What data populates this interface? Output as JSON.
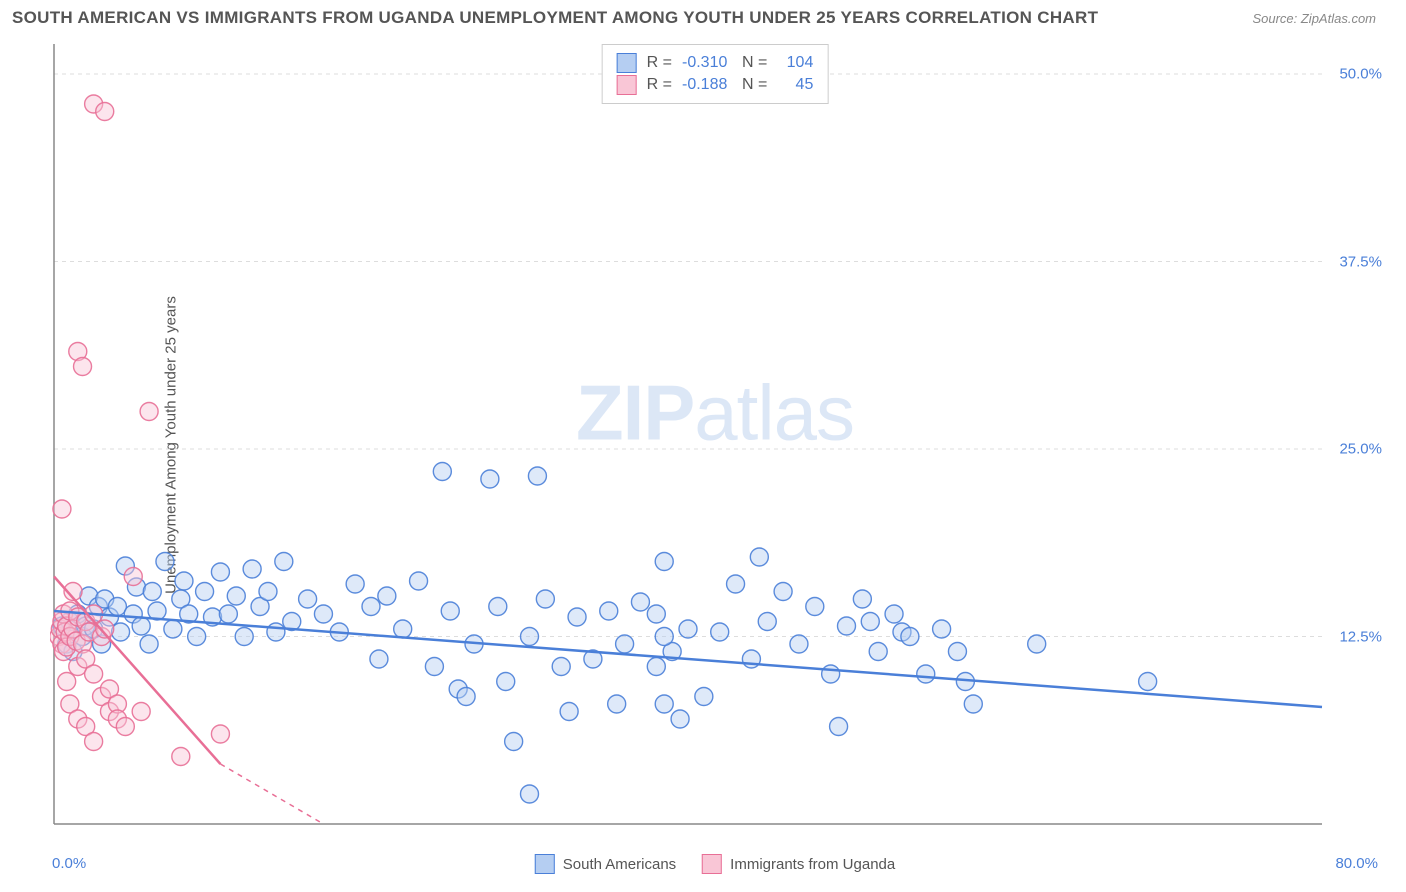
{
  "header": {
    "title": "SOUTH AMERICAN VS IMMIGRANTS FROM UGANDA UNEMPLOYMENT AMONG YOUTH UNDER 25 YEARS CORRELATION CHART",
    "source": "Source: ZipAtlas.com"
  },
  "watermark": {
    "part1": "ZIP",
    "part2": "atlas"
  },
  "chart": {
    "type": "scatter",
    "ylabel": "Unemployment Among Youth under 25 years",
    "xlim": [
      0,
      80
    ],
    "ylim": [
      0,
      52
    ],
    "xticks": [
      {
        "v": 0,
        "label": "0.0%"
      },
      {
        "v": 80,
        "label": "80.0%"
      }
    ],
    "yticks": [
      {
        "v": 12.5,
        "label": "12.5%"
      },
      {
        "v": 25.0,
        "label": "25.0%"
      },
      {
        "v": 37.5,
        "label": "37.5%"
      },
      {
        "v": 50.0,
        "label": "50.0%"
      }
    ],
    "grid_color": "#dddddd",
    "axis_color": "#888888",
    "background_color": "#ffffff",
    "marker_radius": 9,
    "marker_opacity": 0.45,
    "marker_stroke_opacity": 0.9,
    "line_width": 2.5,
    "series": [
      {
        "name": "South Americans",
        "color": "#6fa3e8",
        "stroke": "#4a7fd8",
        "fill": "#b5cef2",
        "R": "-0.310",
        "N": "104",
        "trend": {
          "x1": 0,
          "y1": 14.2,
          "x2": 80,
          "y2": 7.8
        },
        "points": [
          [
            0.5,
            13.2
          ],
          [
            0.8,
            12.0
          ],
          [
            1.0,
            13.5
          ],
          [
            1.2,
            11.5
          ],
          [
            1.5,
            14.0
          ],
          [
            1.8,
            12.5
          ],
          [
            2.0,
            13.2
          ],
          [
            2.2,
            15.2
          ],
          [
            2.5,
            13.0
          ],
          [
            2.8,
            14.5
          ],
          [
            3.0,
            12.0
          ],
          [
            3.2,
            15.0
          ],
          [
            3.5,
            13.8
          ],
          [
            4.0,
            14.5
          ],
          [
            4.2,
            12.8
          ],
          [
            4.5,
            17.2
          ],
          [
            5.0,
            14.0
          ],
          [
            5.2,
            15.8
          ],
          [
            5.5,
            13.2
          ],
          [
            6.0,
            12.0
          ],
          [
            6.2,
            15.5
          ],
          [
            6.5,
            14.2
          ],
          [
            7.0,
            17.5
          ],
          [
            7.5,
            13.0
          ],
          [
            8.0,
            15.0
          ],
          [
            8.2,
            16.2
          ],
          [
            8.5,
            14.0
          ],
          [
            9.0,
            12.5
          ],
          [
            9.5,
            15.5
          ],
          [
            10.0,
            13.8
          ],
          [
            10.5,
            16.8
          ],
          [
            11.0,
            14.0
          ],
          [
            11.5,
            15.2
          ],
          [
            12.0,
            12.5
          ],
          [
            12.5,
            17.0
          ],
          [
            13.0,
            14.5
          ],
          [
            13.5,
            15.5
          ],
          [
            14.0,
            12.8
          ],
          [
            14.5,
            17.5
          ],
          [
            15.0,
            13.5
          ],
          [
            16.0,
            15.0
          ],
          [
            17.0,
            14.0
          ],
          [
            18.0,
            12.8
          ],
          [
            19.0,
            16.0
          ],
          [
            20.0,
            14.5
          ],
          [
            20.5,
            11.0
          ],
          [
            21.0,
            15.2
          ],
          [
            22.0,
            13.0
          ],
          [
            23.0,
            16.2
          ],
          [
            24.0,
            10.5
          ],
          [
            24.5,
            23.5
          ],
          [
            25.0,
            14.2
          ],
          [
            25.5,
            9.0
          ],
          [
            26.0,
            8.5
          ],
          [
            26.5,
            12.0
          ],
          [
            27.5,
            23.0
          ],
          [
            28.0,
            14.5
          ],
          [
            28.5,
            9.5
          ],
          [
            29.0,
            5.5
          ],
          [
            30.0,
            12.5
          ],
          [
            30.5,
            23.2
          ],
          [
            31.0,
            15.0
          ],
          [
            32.0,
            10.5
          ],
          [
            32.5,
            7.5
          ],
          [
            33.0,
            13.8
          ],
          [
            34.0,
            11.0
          ],
          [
            35.0,
            14.2
          ],
          [
            35.5,
            8.0
          ],
          [
            36.0,
            12.0
          ],
          [
            37.0,
            14.8
          ],
          [
            38.0,
            10.5
          ],
          [
            38.5,
            17.5
          ],
          [
            39.0,
            11.5
          ],
          [
            40.0,
            13.0
          ],
          [
            41.0,
            8.5
          ],
          [
            42.0,
            12.8
          ],
          [
            43.0,
            16.0
          ],
          [
            44.0,
            11.0
          ],
          [
            44.5,
            17.8
          ],
          [
            45.0,
            13.5
          ],
          [
            46.0,
            15.5
          ],
          [
            47.0,
            12.0
          ],
          [
            48.0,
            14.5
          ],
          [
            49.0,
            10.0
          ],
          [
            49.5,
            6.5
          ],
          [
            50.0,
            13.2
          ],
          [
            51.0,
            15.0
          ],
          [
            51.5,
            13.5
          ],
          [
            52.0,
            11.5
          ],
          [
            53.0,
            14.0
          ],
          [
            53.5,
            12.8
          ],
          [
            54.0,
            12.5
          ],
          [
            55.0,
            10.0
          ],
          [
            56.0,
            13.0
          ],
          [
            57.0,
            11.5
          ],
          [
            57.5,
            9.5
          ],
          [
            58.0,
            8.0
          ],
          [
            62.0,
            12.0
          ],
          [
            69.0,
            9.5
          ],
          [
            30.0,
            2.0
          ],
          [
            38.5,
            8.0
          ],
          [
            39.5,
            7.0
          ],
          [
            38.0,
            14.0
          ],
          [
            38.5,
            12.5
          ]
        ]
      },
      {
        "name": "Immigrants from Uganda",
        "color": "#f29bb7",
        "stroke": "#e86f96",
        "fill": "#f9c6d6",
        "R": "-0.188",
        "N": "45",
        "trend": {
          "x1": 0,
          "y1": 16.5,
          "x2": 10.5,
          "y2": 4.0
        },
        "trend_dash": {
          "x1": 10.5,
          "y1": 4.0,
          "x2": 17,
          "y2": 0
        },
        "points": [
          [
            0.3,
            12.5
          ],
          [
            0.4,
            13.0
          ],
          [
            0.5,
            12.0
          ],
          [
            0.5,
            13.5
          ],
          [
            0.6,
            11.5
          ],
          [
            0.6,
            14.0
          ],
          [
            0.7,
            12.8
          ],
          [
            0.8,
            13.2
          ],
          [
            0.8,
            11.8
          ],
          [
            1.0,
            12.5
          ],
          [
            1.0,
            14.2
          ],
          [
            1.2,
            13.0
          ],
          [
            1.2,
            15.5
          ],
          [
            1.4,
            12.2
          ],
          [
            1.5,
            13.8
          ],
          [
            1.5,
            10.5
          ],
          [
            1.8,
            12.0
          ],
          [
            2.0,
            13.5
          ],
          [
            2.0,
            11.0
          ],
          [
            2.2,
            12.8
          ],
          [
            2.5,
            14.0
          ],
          [
            2.5,
            10.0
          ],
          [
            3.0,
            12.5
          ],
          [
            3.0,
            8.5
          ],
          [
            3.2,
            13.0
          ],
          [
            3.5,
            9.0
          ],
          [
            3.5,
            7.5
          ],
          [
            4.0,
            8.0
          ],
          [
            4.0,
            7.0
          ],
          [
            4.5,
            6.5
          ],
          [
            5.0,
            16.5
          ],
          [
            5.5,
            7.5
          ],
          [
            6.0,
            27.5
          ],
          [
            8.0,
            4.5
          ],
          [
            10.5,
            6.0
          ],
          [
            0.5,
            21.0
          ],
          [
            1.5,
            31.5
          ],
          [
            1.8,
            30.5
          ],
          [
            2.5,
            48.0
          ],
          [
            3.2,
            47.5
          ],
          [
            0.8,
            9.5
          ],
          [
            1.0,
            8.0
          ],
          [
            1.5,
            7.0
          ],
          [
            2.0,
            6.5
          ],
          [
            2.5,
            5.5
          ]
        ]
      }
    ]
  },
  "legend_bottom": [
    {
      "label": "South Americans",
      "fill": "#b5cef2",
      "stroke": "#4a7fd8"
    },
    {
      "label": "Immigrants from Uganda",
      "fill": "#f9c6d6",
      "stroke": "#e86f96"
    }
  ],
  "stats_box": [
    {
      "fill": "#b5cef2",
      "stroke": "#4a7fd8",
      "R": "-0.310",
      "N": "104"
    },
    {
      "fill": "#f9c6d6",
      "stroke": "#e86f96",
      "R": "-0.188",
      "N": "45"
    }
  ]
}
